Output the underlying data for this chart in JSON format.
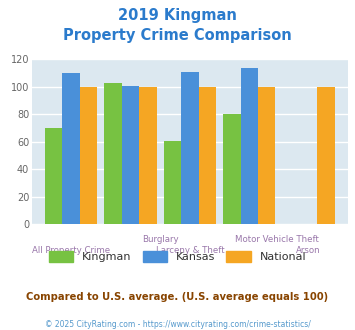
{
  "title_line1": "2019 Kingman",
  "title_line2": "Property Crime Comparison",
  "title_color": "#2b7bcc",
  "kingman": [
    70,
    103,
    61,
    80,
    0
  ],
  "kansas": [
    110,
    101,
    111,
    114,
    0
  ],
  "national": [
    100,
    100,
    100,
    100,
    100
  ],
  "kingman_color": "#77c242",
  "kansas_color": "#4a90d9",
  "national_color": "#f5a623",
  "ylim": [
    0,
    120
  ],
  "yticks": [
    0,
    20,
    40,
    60,
    80,
    100,
    120
  ],
  "background_color": "#dce8f0",
  "grid_color": "#ffffff",
  "note": "Compared to U.S. average. (U.S. average equals 100)",
  "note_color": "#884400",
  "footer": "© 2025 CityRating.com - https://www.cityrating.com/crime-statistics/",
  "footer_color": "#5599cc",
  "legend_labels": [
    "Kingman",
    "Kansas",
    "National"
  ]
}
